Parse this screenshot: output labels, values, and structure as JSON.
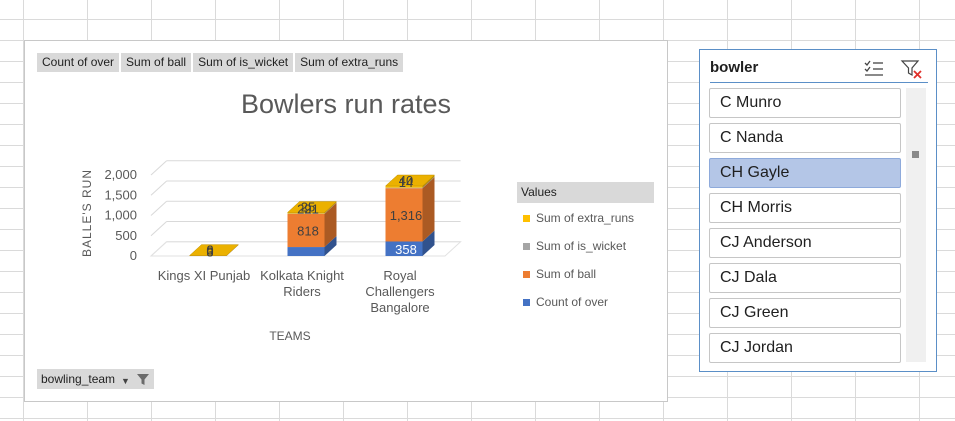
{
  "pivot_field_buttons": [
    "Count of over",
    "Sum of ball",
    "Sum of is_wicket",
    "Sum of extra_runs"
  ],
  "axis_field_button": "bowling_team",
  "legend_header": "Values",
  "chart_data": {
    "type": "bar",
    "stacked": true,
    "three_d": true,
    "title": "Bowlers run rates",
    "xlabel": "TEAMS",
    "ylabel": "BALLE'S RUN",
    "ylim": [
      0,
      2000
    ],
    "y_ticks": [
      "0",
      "500",
      "1,000",
      "1,500",
      "2,000"
    ],
    "categories": [
      [
        "Kings XI Punjab"
      ],
      [
        "Kolkata Knight",
        "Riders"
      ],
      [
        "Royal",
        "Challengers",
        "Bangalore"
      ]
    ],
    "series": [
      {
        "name": "Count of over",
        "color": "#4472c4",
        "values": [
          3,
          221,
          358
        ],
        "labels": [
          "3",
          "221",
          "358"
        ]
      },
      {
        "name": "Sum of ball",
        "color": "#ed7d31",
        "values": [
          6,
          818,
          1316
        ],
        "labels": [
          "6",
          "818",
          "1,316"
        ]
      },
      {
        "name": "Sum of is_wicket",
        "color": "#a5a5a5",
        "values": [
          0,
          9,
          14
        ],
        "labels": [
          "0",
          "9",
          "14"
        ]
      },
      {
        "name": "Sum of extra_runs",
        "color": "#ffc000",
        "values": [
          0,
          25,
          40
        ],
        "labels": [
          "0",
          "25",
          "40"
        ]
      }
    ],
    "legend_placement": "right",
    "grid": true
  },
  "slicer": {
    "title": "bowler",
    "multiselect_icon": "multi-select-icon",
    "clear_filter_icon": "clear-filter-icon",
    "items": [
      {
        "label": "C Munro",
        "selected": false
      },
      {
        "label": "C Nanda",
        "selected": false
      },
      {
        "label": "CH Gayle",
        "selected": true
      },
      {
        "label": "CH Morris",
        "selected": false
      },
      {
        "label": "CJ Anderson",
        "selected": false
      },
      {
        "label": "CJ Dala",
        "selected": false
      },
      {
        "label": "CJ Green",
        "selected": false
      },
      {
        "label": "CJ Jordan",
        "selected": false
      }
    ]
  }
}
